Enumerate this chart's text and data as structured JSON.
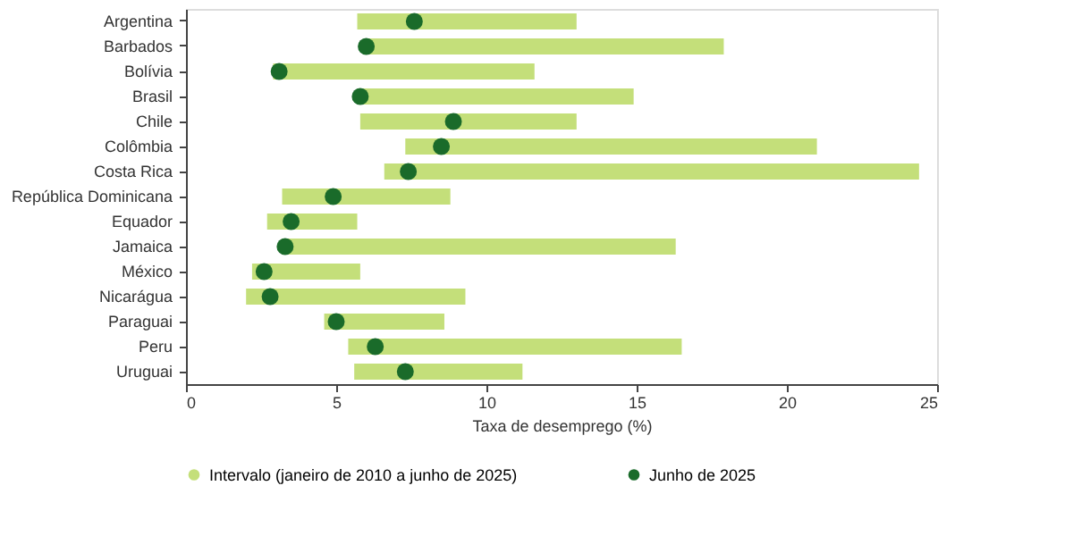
{
  "chart_data": {
    "type": "bar",
    "orientation": "horizontal",
    "xlabel": "Taxa de desemprego (%)",
    "categories": [
      "Argentina",
      "Barbados",
      "Bolívia",
      "Brasil",
      "Chile",
      "Colômbia",
      "Costa Rica",
      "República Dominicana",
      "Equador",
      "Jamaica",
      "México",
      "Nicarágua",
      "Paraguai",
      "Peru",
      "Uruguai"
    ],
    "series": [
      {
        "name": "Intervalo (janeiro de 2010 a junho de 2025)",
        "color": "#c4df7a",
        "base": [
          5.7,
          6.0,
          2.9,
          5.7,
          5.8,
          7.3,
          6.6,
          3.2,
          2.7,
          3.2,
          2.2,
          2.0,
          4.6,
          5.4,
          5.6
        ],
        "values": [
          7.3,
          11.9,
          8.7,
          9.2,
          7.2,
          13.7,
          17.8,
          5.6,
          3.0,
          13.1,
          3.6,
          7.3,
          4.0,
          11.1,
          5.6
        ]
      },
      {
        "name": "Junho de 2025",
        "type": "scatter",
        "color": "#1a6b2a",
        "values": [
          7.6,
          6.0,
          3.1,
          5.8,
          8.9,
          8.5,
          7.4,
          4.9,
          3.5,
          3.3,
          2.6,
          2.8,
          5.0,
          6.3,
          7.3
        ]
      }
    ],
    "xlim": [
      0,
      25
    ],
    "xticks": [
      0,
      5,
      10,
      15,
      20,
      25
    ],
    "grid": false,
    "legend": "bottom",
    "marker": "circle"
  }
}
